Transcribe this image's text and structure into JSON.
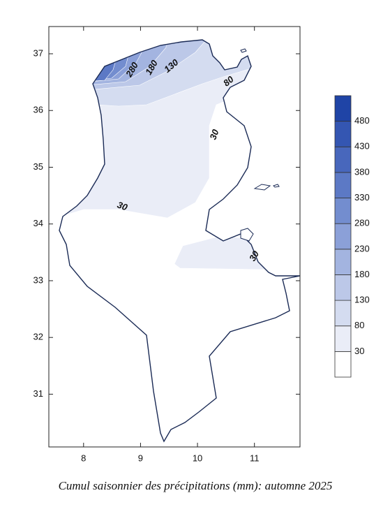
{
  "map": {
    "caption": "Cumul saisonnier des précipitations (mm): automne 2025",
    "xlim": [
      7.39,
      11.8
    ],
    "ylim": [
      30.07,
      37.48
    ],
    "xticks": [
      8,
      9,
      10,
      11
    ],
    "yticks": [
      31,
      32,
      33,
      34,
      35,
      36,
      37
    ],
    "contour_labels": [
      280,
      180,
      130,
      80,
      30,
      30,
      30
    ],
    "colorbar": {
      "levels": [
        30,
        80,
        130,
        180,
        230,
        280,
        330,
        380,
        430,
        480
      ],
      "colors": [
        "#ffffff",
        "#eaedf7",
        "#d4dcf0",
        "#bcc8e8",
        "#a3b4e0",
        "#8ba0d8",
        "#738dcf",
        "#5c79c5",
        "#4867bc",
        "#3456b2",
        "#1f44a6"
      ]
    }
  }
}
